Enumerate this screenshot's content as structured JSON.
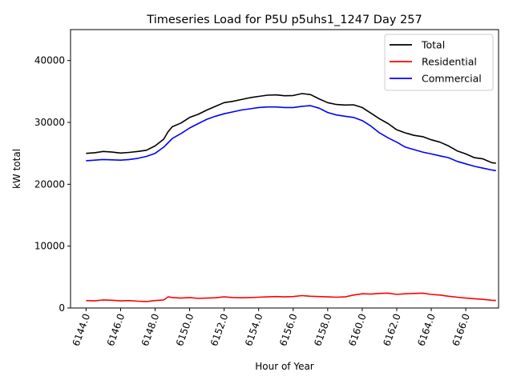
{
  "chart_data": {
    "type": "line",
    "title": "Timeseries Load for P5U p5uhs1_1247  Day 257",
    "xlabel": "Hour of Year",
    "ylabel": "kW total",
    "xlim": [
      6143.1,
      6167.9
    ],
    "ylim": [
      0,
      45000
    ],
    "x_ticks": [
      6144,
      6146,
      6148,
      6150,
      6152,
      6154,
      6156,
      6158,
      6160,
      6162,
      6164,
      6166
    ],
    "x_tick_labels": [
      "6144.0",
      "6146.0",
      "6148.0",
      "6150.0",
      "6152.0",
      "6154.0",
      "6156.0",
      "6158.0",
      "6160.0",
      "6162.0",
      "6164.0",
      "6166.0"
    ],
    "y_ticks": [
      0,
      10000,
      20000,
      30000,
      40000
    ],
    "y_tick_labels": [
      "0",
      "10000",
      "20000",
      "30000",
      "40000"
    ],
    "legend_position": "top-right",
    "grid": false,
    "x": [
      6144.0,
      6144.5,
      6145.0,
      6145.5,
      6146.0,
      6146.5,
      6147.0,
      6147.5,
      6148.0,
      6148.5,
      6148.75,
      6149.0,
      6149.5,
      6150.0,
      6150.5,
      6151.0,
      6151.5,
      6152.0,
      6152.5,
      6153.0,
      6153.5,
      6154.0,
      6154.5,
      6155.0,
      6155.5,
      6156.0,
      6156.5,
      6157.0,
      6157.5,
      6158.0,
      6158.5,
      6159.0,
      6159.5,
      6160.0,
      6160.5,
      6161.0,
      6161.5,
      6162.0,
      6162.5,
      6163.0,
      6163.5,
      6164.0,
      6164.5,
      6165.0,
      6165.5,
      6166.0,
      6166.5,
      6167.0,
      6167.5,
      6167.75
    ],
    "series": [
      {
        "name": "Total",
        "color": "#000000",
        "values": [
          25000,
          25100,
          25300,
          25200,
          25050,
          25150,
          25300,
          25500,
          26200,
          27300,
          28500,
          29300,
          29900,
          30800,
          31300,
          32000,
          32600,
          33200,
          33400,
          33700,
          34000,
          34200,
          34400,
          34450,
          34300,
          34350,
          34650,
          34500,
          33800,
          33200,
          32900,
          32800,
          32850,
          32400,
          31500,
          30600,
          29800,
          28800,
          28300,
          27900,
          27700,
          27200,
          26800,
          26200,
          25400,
          24900,
          24300,
          24100,
          23500,
          23400
        ]
      },
      {
        "name": "Residential",
        "color": "#ff0000",
        "values": [
          1200,
          1150,
          1300,
          1250,
          1150,
          1200,
          1100,
          1050,
          1200,
          1300,
          1800,
          1700,
          1600,
          1700,
          1550,
          1600,
          1650,
          1800,
          1700,
          1650,
          1700,
          1750,
          1800,
          1850,
          1800,
          1850,
          2000,
          1900,
          1850,
          1800,
          1750,
          1800,
          2100,
          2300,
          2250,
          2350,
          2400,
          2200,
          2300,
          2350,
          2400,
          2200,
          2100,
          1900,
          1750,
          1600,
          1500,
          1400,
          1250,
          1200
        ]
      },
      {
        "name": "Commercial",
        "color": "#0000ff",
        "values": [
          23800,
          23900,
          24000,
          23950,
          23900,
          24000,
          24200,
          24500,
          25000,
          26000,
          26700,
          27400,
          28200,
          29100,
          29800,
          30500,
          31000,
          31400,
          31700,
          32000,
          32200,
          32400,
          32500,
          32500,
          32400,
          32400,
          32600,
          32700,
          32300,
          31600,
          31200,
          31000,
          30800,
          30300,
          29400,
          28300,
          27500,
          26800,
          26000,
          25600,
          25200,
          24900,
          24600,
          24300,
          23700,
          23300,
          22900,
          22600,
          22300,
          22200
        ]
      }
    ]
  }
}
